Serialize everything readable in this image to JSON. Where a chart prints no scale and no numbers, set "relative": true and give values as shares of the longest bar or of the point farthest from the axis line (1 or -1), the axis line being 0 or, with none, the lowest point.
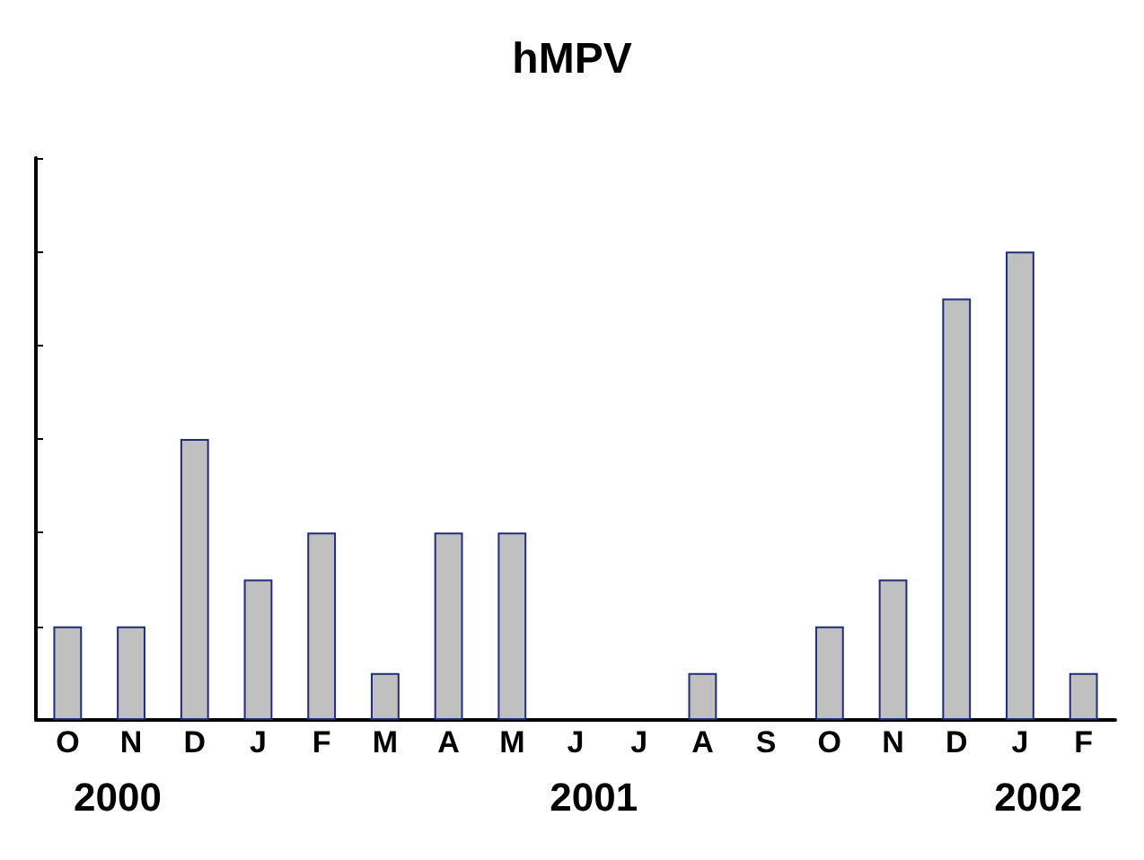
{
  "chart_data": {
    "type": "bar",
    "title": "hMPV",
    "relative": true,
    "categories": [
      "O",
      "N",
      "D",
      "J",
      "F",
      "M",
      "A",
      "M",
      "J",
      "J",
      "A",
      "S",
      "O",
      "N",
      "D",
      "J",
      "F"
    ],
    "values": [
      0.2,
      0.2,
      0.6,
      0.3,
      0.4,
      0.1,
      0.4,
      0.4,
      0,
      0,
      0.1,
      0,
      0.2,
      0.3,
      0.9,
      1,
      0.1
    ],
    "color": "#c0c0c0",
    "annotations": [
      "2000",
      "2001",
      "2002"
    ],
    "grid": false
  }
}
